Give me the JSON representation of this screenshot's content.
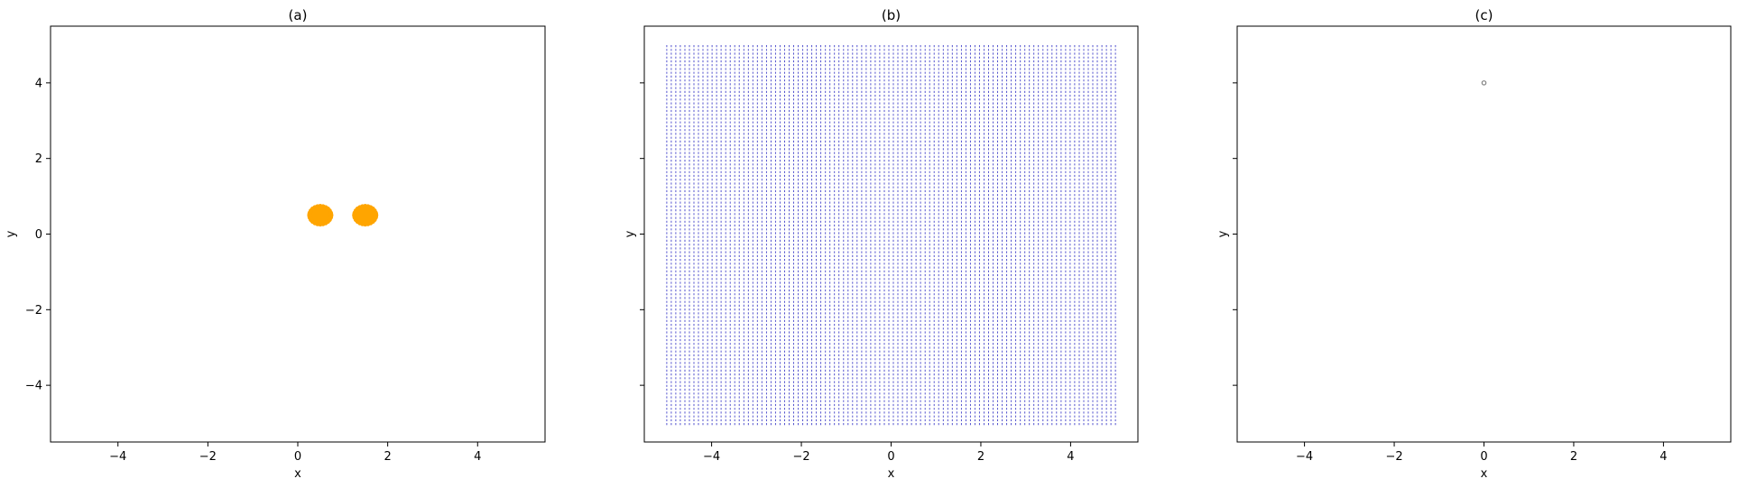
{
  "chart_data": [
    {
      "type": "scatter",
      "title": "(a)",
      "xlabel": "x",
      "ylabel": "y",
      "xlim": [
        -5.5,
        5.5
      ],
      "ylim": [
        -5.5,
        5.5
      ],
      "xticks": [
        -4,
        -2,
        0,
        2,
        4
      ],
      "yticks": [
        -4,
        -2,
        0,
        2,
        4
      ],
      "show_yticklabels": true,
      "grid": false,
      "series": [
        {
          "color": "#ffa500",
          "style": "filled-disc-cluster",
          "clusters": [
            {
              "center": [
                0.5,
                0.5
              ],
              "radius": 0.25
            },
            {
              "center": [
                1.5,
                0.5
              ],
              "radius": 0.25
            }
          ]
        }
      ]
    },
    {
      "type": "quiver",
      "title": "(b)",
      "xlabel": "x",
      "ylabel": "y",
      "xlim": [
        -5.5,
        5.5
      ],
      "ylim": [
        -5.5,
        5.5
      ],
      "xticks": [
        -4,
        -2,
        0,
        2,
        4
      ],
      "yticks": [
        -4,
        -2,
        0,
        2,
        4
      ],
      "show_yticklabels": false,
      "grid": false,
      "series": [
        {
          "color": "#2020c0",
          "style": "dense-grid",
          "x_range": [
            -5,
            5
          ],
          "y_range": [
            -5,
            5
          ]
        }
      ]
    },
    {
      "type": "scatter",
      "title": "(c)",
      "xlabel": "x",
      "ylabel": "y",
      "xlim": [
        -5.5,
        5.5
      ],
      "ylim": [
        -5.5,
        5.5
      ],
      "xticks": [
        -4,
        -2,
        0,
        2,
        4
      ],
      "yticks": [
        -4,
        -2,
        0,
        2,
        4
      ],
      "show_yticklabels": false,
      "grid": false,
      "series": [
        {
          "color": "#808080",
          "style": "point",
          "points": [
            [
              0,
              4
            ]
          ]
        }
      ]
    }
  ]
}
